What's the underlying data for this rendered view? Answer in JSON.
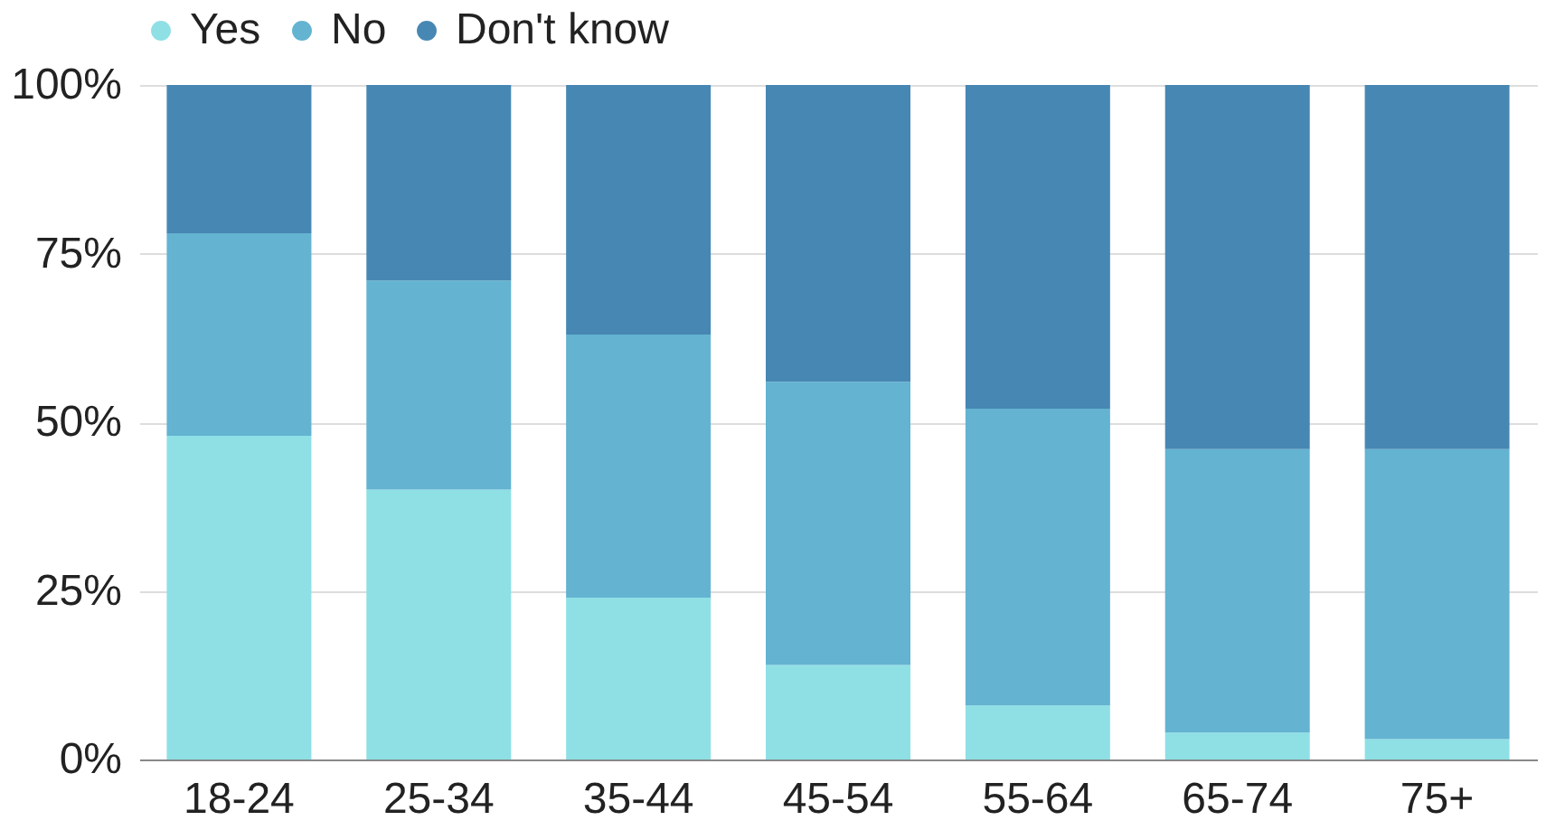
{
  "chart_data": {
    "type": "bar",
    "stacked": true,
    "categories": [
      "18-24",
      "25-34",
      "35-44",
      "45-54",
      "55-64",
      "65-74",
      "75+"
    ],
    "series": [
      {
        "name": "Yes",
        "color": "#8ee0e5",
        "values": [
          48,
          40,
          24,
          14,
          8,
          4,
          3
        ]
      },
      {
        "name": "No",
        "color": "#63b3d1",
        "values": [
          30,
          31,
          39,
          42,
          44,
          42,
          43
        ]
      },
      {
        "name": "Don't know",
        "color": "#4787b3",
        "values": [
          22,
          29,
          37,
          44,
          48,
          54,
          54
        ]
      }
    ],
    "ylim": [
      0,
      100
    ],
    "yticks": [
      {
        "value": 0,
        "label": "0%"
      },
      {
        "value": 25,
        "label": "25%"
      },
      {
        "value": 50,
        "label": "50%"
      },
      {
        "value": 75,
        "label": "75%"
      },
      {
        "value": 100,
        "label": "100%"
      }
    ],
    "grid": "y",
    "legend": "top"
  }
}
